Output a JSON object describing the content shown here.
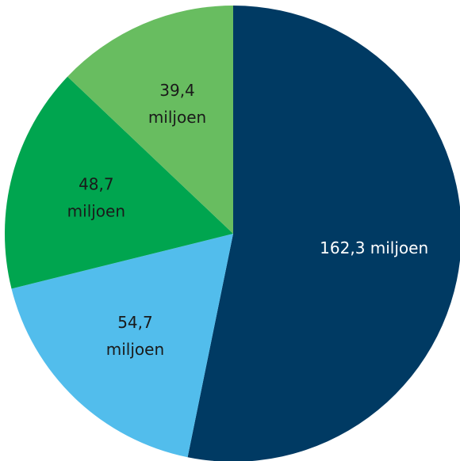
{
  "chart_data": {
    "type": "pie",
    "title": "",
    "unit": "miljoen",
    "slices": [
      {
        "value": 162.3,
        "label_lines": [
          "162,3 miljoen"
        ],
        "color": "#003a63",
        "text_color": "#ffffff"
      },
      {
        "value": 54.7,
        "label_lines": [
          "54,7",
          "miljoen"
        ],
        "color": "#52bdec",
        "text_color": "#1a1a1a"
      },
      {
        "value": 48.7,
        "label_lines": [
          "48,7",
          "miljoen"
        ],
        "color": "#00a54f",
        "text_color": "#1a1a1a"
      },
      {
        "value": 39.4,
        "label_lines": [
          "39,4",
          "miljoen"
        ],
        "color": "#68bd60",
        "text_color": "#1a1a1a"
      }
    ]
  }
}
